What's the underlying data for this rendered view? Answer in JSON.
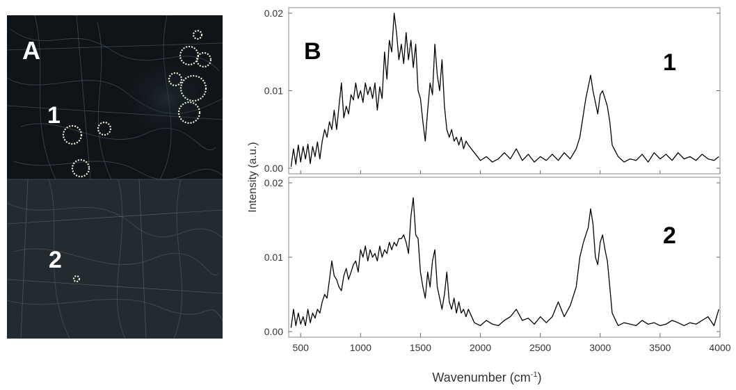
{
  "panel_a": {
    "label": "A",
    "region_labels": [
      "1",
      "2"
    ]
  },
  "panel_b": {
    "label": "B",
    "ylabel": "Intensity (a.u.)",
    "xlabel_main": "Wavenumber (cm",
    "xlabel_sup": "-1",
    "xlabel_close": ")",
    "line_color": "#000000"
  },
  "chart_data": {
    "type": "line",
    "title": "",
    "xlabel": "Wavenumber (cm-1)",
    "ylabel": "Intensity (a.u.)",
    "xlim": [
      400,
      4000
    ],
    "x_ticks": [
      500,
      1000,
      1500,
      2000,
      2500,
      3000,
      3500,
      4000
    ],
    "grid": false,
    "subplots": [
      {
        "name": "1",
        "ylim": [
          0,
          0.02
        ],
        "y_ticks": [
          "0.00",
          "0.01",
          "0.02"
        ],
        "series": [
          {
            "name": "1",
            "x": [
              420,
              440,
              460,
              480,
              500,
              520,
              540,
              560,
              580,
              600,
              620,
              640,
              660,
              680,
              700,
              720,
              740,
              760,
              780,
              800,
              820,
              840,
              860,
              880,
              900,
              920,
              940,
              960,
              980,
              1000,
              1020,
              1040,
              1060,
              1080,
              1100,
              1120,
              1140,
              1160,
              1180,
              1200,
              1220,
              1240,
              1260,
              1280,
              1300,
              1320,
              1340,
              1360,
              1380,
              1400,
              1420,
              1440,
              1460,
              1480,
              1500,
              1520,
              1540,
              1560,
              1580,
              1600,
              1620,
              1640,
              1660,
              1680,
              1700,
              1720,
              1740,
              1760,
              1780,
              1800,
              1820,
              1840,
              1860,
              1880,
              1900,
              1950,
              2000,
              2050,
              2100,
              2150,
              2200,
              2250,
              2300,
              2350,
              2400,
              2450,
              2500,
              2550,
              2600,
              2650,
              2700,
              2750,
              2800,
              2830,
              2860,
              2880,
              2900,
              2920,
              2940,
              2960,
              2980,
              3000,
              3020,
              3040,
              3060,
              3080,
              3100,
              3150,
              3200,
              3250,
              3300,
              3350,
              3400,
              3450,
              3500,
              3550,
              3600,
              3650,
              3700,
              3750,
              3800,
              3850,
              3900,
              3950,
              3990
            ],
            "y": [
              0.0002,
              0.0025,
              0.0005,
              0.003,
              0.0008,
              0.0028,
              0.0012,
              0.0031,
              0.0006,
              0.0028,
              0.0015,
              0.0034,
              0.0012,
              0.0035,
              0.005,
              0.004,
              0.006,
              0.005,
              0.0075,
              0.005,
              0.008,
              0.011,
              0.0065,
              0.008,
              0.007,
              0.0095,
              0.0088,
              0.011,
              0.009,
              0.01,
              0.0085,
              0.011,
              0.0095,
              0.0105,
              0.009,
              0.011,
              0.0075,
              0.0105,
              0.009,
              0.015,
              0.0115,
              0.0165,
              0.015,
              0.02,
              0.0175,
              0.014,
              0.016,
              0.0135,
              0.0175,
              0.014,
              0.0165,
              0.013,
              0.016,
              0.01,
              0.009,
              0.006,
              0.0035,
              0.0075,
              0.011,
              0.0095,
              0.016,
              0.012,
              0.01,
              0.014,
              0.008,
              0.005,
              0.004,
              0.005,
              0.0035,
              0.004,
              0.003,
              0.004,
              0.0025,
              0.0035,
              0.003,
              0.002,
              0.001,
              0.0015,
              0.0008,
              0.0012,
              0.002,
              0.0012,
              0.0025,
              0.001,
              0.0018,
              0.0008,
              0.0015,
              0.001,
              0.0018,
              0.001,
              0.002,
              0.0012,
              0.0025,
              0.004,
              0.007,
              0.009,
              0.0105,
              0.012,
              0.01,
              0.0085,
              0.007,
              0.0095,
              0.01,
              0.009,
              0.008,
              0.006,
              0.003,
              0.0015,
              0.0008,
              0.0012,
              0.001,
              0.0018,
              0.0008,
              0.002,
              0.0012,
              0.0018,
              0.001,
              0.002,
              0.0012,
              0.0015,
              0.001,
              0.0018,
              0.0012,
              0.001,
              0.0015
            ]
          }
        ]
      },
      {
        "name": "2",
        "ylim": [
          0,
          0.02
        ],
        "y_ticks": [
          "0.00",
          "0.01",
          "0.02"
        ],
        "series": [
          {
            "name": "2",
            "x": [
              420,
              440,
              460,
              480,
              500,
              520,
              540,
              560,
              580,
              600,
              620,
              640,
              660,
              680,
              700,
              720,
              740,
              760,
              780,
              800,
              820,
              840,
              860,
              880,
              900,
              920,
              940,
              960,
              980,
              1000,
              1020,
              1040,
              1060,
              1080,
              1100,
              1120,
              1140,
              1160,
              1180,
              1200,
              1220,
              1240,
              1260,
              1280,
              1300,
              1320,
              1340,
              1360,
              1380,
              1400,
              1420,
              1440,
              1460,
              1480,
              1500,
              1520,
              1540,
              1560,
              1580,
              1600,
              1620,
              1640,
              1660,
              1680,
              1700,
              1720,
              1740,
              1760,
              1780,
              1800,
              1820,
              1840,
              1860,
              1880,
              1900,
              1950,
              2000,
              2050,
              2100,
              2150,
              2200,
              2250,
              2300,
              2350,
              2400,
              2450,
              2500,
              2550,
              2600,
              2650,
              2700,
              2750,
              2800,
              2830,
              2860,
              2880,
              2900,
              2920,
              2940,
              2960,
              2980,
              3000,
              3020,
              3040,
              3060,
              3080,
              3100,
              3150,
              3200,
              3250,
              3300,
              3350,
              3400,
              3450,
              3500,
              3550,
              3600,
              3650,
              3700,
              3750,
              3800,
              3850,
              3900,
              3950,
              3990
            ],
            "y": [
              0.0005,
              0.003,
              0.0008,
              0.0025,
              0.001,
              0.002,
              0.0008,
              0.003,
              0.0012,
              0.0025,
              0.0018,
              0.003,
              0.0025,
              0.004,
              0.005,
              0.0045,
              0.007,
              0.0095,
              0.0075,
              0.007,
              0.006,
              0.0055,
              0.0075,
              0.0085,
              0.007,
              0.008,
              0.009,
              0.0095,
              0.008,
              0.011,
              0.01,
              0.0115,
              0.0095,
              0.011,
              0.01,
              0.0105,
              0.0095,
              0.0115,
              0.01,
              0.011,
              0.0105,
              0.012,
              0.011,
              0.012,
              0.0115,
              0.0125,
              0.0125,
              0.013,
              0.012,
              0.0105,
              0.0155,
              0.018,
              0.013,
              0.0125,
              0.008,
              0.006,
              0.0045,
              0.008,
              0.006,
              0.0095,
              0.011,
              0.006,
              0.0045,
              0.003,
              0.005,
              0.008,
              0.004,
              0.003,
              0.0045,
              0.0025,
              0.004,
              0.0025,
              0.003,
              0.002,
              0.003,
              0.0012,
              0.0008,
              0.0015,
              0.001,
              0.0008,
              0.0015,
              0.002,
              0.003,
              0.0015,
              0.0018,
              0.001,
              0.002,
              0.0012,
              0.002,
              0.004,
              0.002,
              0.0035,
              0.006,
              0.01,
              0.012,
              0.013,
              0.014,
              0.0165,
              0.0145,
              0.01,
              0.009,
              0.012,
              0.013,
              0.011,
              0.0095,
              0.006,
              0.0025,
              0.0008,
              0.0012,
              0.001,
              0.0008,
              0.0015,
              0.001,
              0.0012,
              0.0008,
              0.001,
              0.0015,
              0.0012,
              0.0008,
              0.0012,
              0.001,
              0.0015,
              0.002,
              0.0008,
              0.003
            ]
          }
        ]
      }
    ]
  }
}
